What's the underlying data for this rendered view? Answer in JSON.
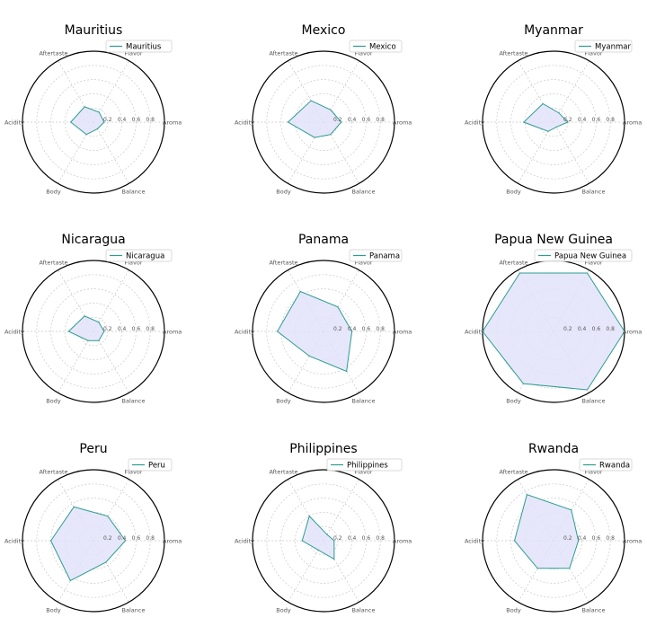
{
  "figure": {
    "axes_labels": [
      "Aroma",
      "Flavor",
      "Aftertaste",
      "Acidity",
      "Body",
      "Balance"
    ],
    "radial_ticks": [
      "0.2",
      "0.4",
      "0.6",
      "0.8"
    ],
    "rlim": [
      0,
      1
    ],
    "colors": {
      "line": "#2a9d8f",
      "fill": "#e3e3fa",
      "outer": "#000000",
      "grid": "#c8c8c8"
    }
  },
  "chart_data": [
    {
      "type": "radar",
      "title": "Mauritius",
      "series": [
        {
          "name": "Mauritius",
          "values": [
            0.15,
            0.16,
            0.25,
            0.32,
            0.2,
            0.11
          ]
        }
      ],
      "categories": [
        "Aroma",
        "Flavor",
        "Aftertaste",
        "Acidity",
        "Body",
        "Balance"
      ],
      "rlim": [
        0,
        1
      ],
      "legend": "top-right"
    },
    {
      "type": "radar",
      "title": "Mexico",
      "series": [
        {
          "name": "Mexico",
          "values": [
            0.25,
            0.2,
            0.35,
            0.5,
            0.25,
            0.2
          ]
        }
      ],
      "categories": [
        "Aroma",
        "Flavor",
        "Aftertaste",
        "Acidity",
        "Body",
        "Balance"
      ],
      "rlim": [
        0,
        1
      ],
      "legend": "top-right"
    },
    {
      "type": "radar",
      "title": "Myanmar",
      "series": [
        {
          "name": "Myanmar",
          "values": [
            0.2,
            0.15,
            0.3,
            0.42,
            0.15,
            0.08
          ]
        }
      ],
      "categories": [
        "Aroma",
        "Flavor",
        "Aftertaste",
        "Acidity",
        "Body",
        "Balance"
      ],
      "rlim": [
        0,
        1
      ],
      "legend": "top-right"
    },
    {
      "type": "radar",
      "title": "Nicaragua",
      "series": [
        {
          "name": "Nicaragua",
          "values": [
            0.15,
            0.15,
            0.25,
            0.35,
            0.15,
            0.15
          ]
        }
      ],
      "categories": [
        "Aroma",
        "Flavor",
        "Aftertaste",
        "Acidity",
        "Body",
        "Balance"
      ],
      "rlim": [
        0,
        1
      ],
      "legend": "top-right"
    },
    {
      "type": "radar",
      "title": "Panama",
      "series": [
        {
          "name": "Panama",
          "values": [
            0.4,
            0.4,
            0.65,
            0.65,
            0.4,
            0.65
          ]
        }
      ],
      "categories": [
        "Aroma",
        "Flavor",
        "Aftertaste",
        "Acidity",
        "Body",
        "Balance"
      ],
      "rlim": [
        0,
        1
      ],
      "legend": "top-right"
    },
    {
      "type": "radar",
      "title": "Papua New Guinea",
      "series": [
        {
          "name": "Papua New Guinea",
          "values": [
            1.0,
            0.95,
            0.95,
            1.0,
            0.85,
            0.95
          ]
        }
      ],
      "categories": [
        "Aroma",
        "Flavor",
        "Aftertaste",
        "Acidity",
        "Body",
        "Balance"
      ],
      "rlim": [
        0,
        1
      ],
      "legend": "top-right"
    },
    {
      "type": "radar",
      "title": "Peru",
      "series": [
        {
          "name": "Peru",
          "values": [
            0.45,
            0.4,
            0.55,
            0.6,
            0.65,
            0.35
          ]
        }
      ],
      "categories": [
        "Aroma",
        "Flavor",
        "Aftertaste",
        "Acidity",
        "Body",
        "Balance"
      ],
      "rlim": [
        0,
        1
      ],
      "legend": "top-right"
    },
    {
      "type": "radar",
      "title": "Philippines",
      "series": [
        {
          "name": "Philippines",
          "values": [
            0.15,
            0.1,
            0.4,
            0.3,
            0.15,
            0.3
          ]
        }
      ],
      "categories": [
        "Aroma",
        "Flavor",
        "Aftertaste",
        "Acidity",
        "Body",
        "Balance"
      ],
      "rlim": [
        0,
        1
      ],
      "legend": "top-right"
    },
    {
      "type": "radar",
      "title": "Rwanda",
      "series": [
        {
          "name": "Rwanda",
          "values": [
            0.35,
            0.5,
            0.75,
            0.55,
            0.45,
            0.45
          ]
        }
      ],
      "categories": [
        "Aroma",
        "Flavor",
        "Aftertaste",
        "Acidity",
        "Body",
        "Balance"
      ],
      "rlim": [
        0,
        1
      ],
      "legend": "top-right"
    }
  ]
}
